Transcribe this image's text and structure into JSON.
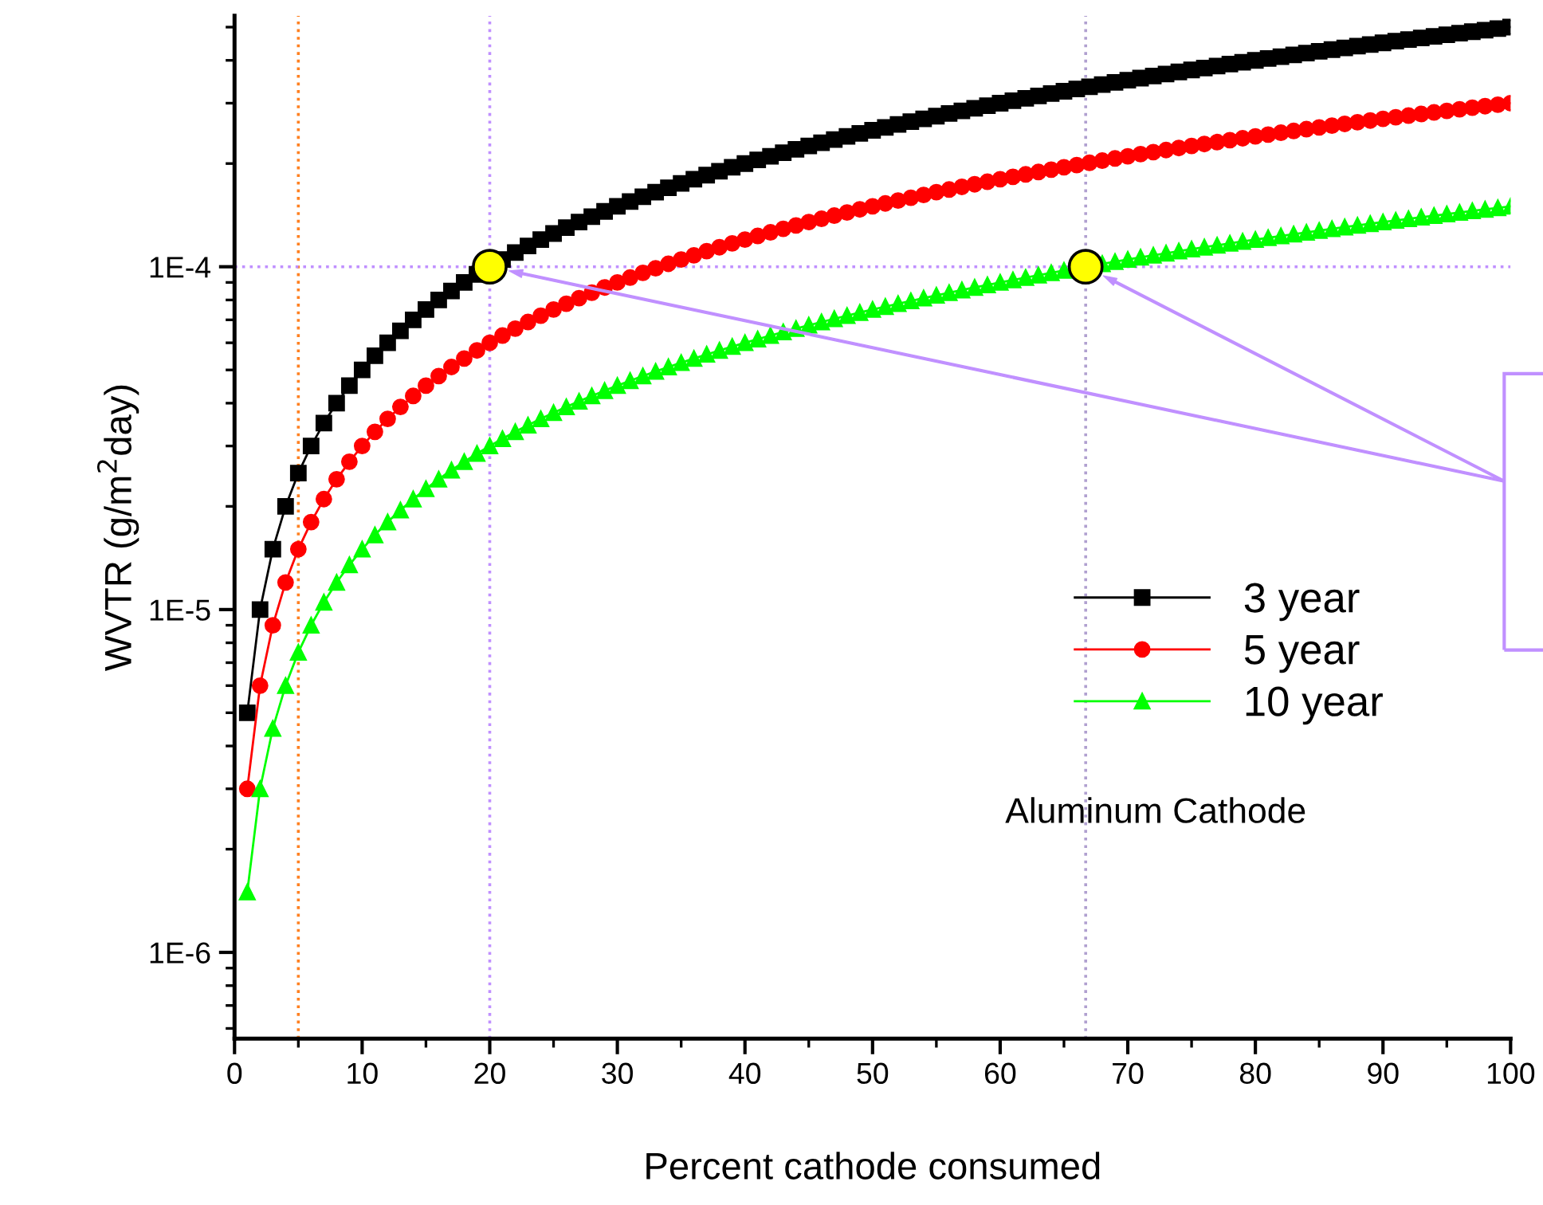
{
  "chart_data": {
    "type": "line",
    "xlabel": "Percent cathode consumed",
    "ylabel": "WVTR (g/m$^{2}$day)",
    "x": [
      1,
      2,
      3,
      4,
      5,
      6,
      7,
      8,
      9,
      10,
      11,
      12,
      13,
      14,
      15,
      16,
      17,
      18,
      19,
      20,
      21,
      22,
      23,
      24,
      25,
      26,
      27,
      28,
      29,
      30,
      31,
      32,
      33,
      34,
      35,
      36,
      37,
      38,
      39,
      40,
      41,
      42,
      43,
      44,
      45,
      46,
      47,
      48,
      49,
      50,
      51,
      52,
      53,
      54,
      55,
      56,
      57,
      58,
      59,
      60,
      61,
      62,
      63,
      64,
      65,
      66,
      67,
      68,
      69,
      70,
      71,
      72,
      73,
      74,
      75,
      76,
      77,
      78,
      79,
      80,
      81,
      82,
      83,
      84,
      85,
      86,
      87,
      88,
      89,
      90,
      91,
      92,
      93,
      94,
      95,
      96,
      97,
      98,
      99,
      100
    ],
    "series": [
      {
        "name": "3 year",
        "color": "#000000",
        "marker": "square",
        "values": [
          5e-06,
          1e-05,
          1.5e-05,
          2e-05,
          2.5e-05,
          3e-05,
          3.5e-05,
          4e-05,
          4.5e-05,
          5e-05,
          5.5e-05,
          6e-05,
          6.5e-05,
          7e-05,
          7.5e-05,
          8e-05,
          8.5e-05,
          9e-05,
          9.5e-05,
          null,
          0.000105,
          0.00011,
          0.000115,
          0.00012,
          0.000125,
          0.00013,
          0.000135,
          0.00014,
          0.000145,
          0.00015,
          0.000155,
          0.00016,
          0.000165,
          0.00017,
          0.000175,
          0.00018,
          0.000185,
          0.00019,
          0.000195,
          0.0002,
          0.000205,
          0.00021,
          0.000215,
          0.00022,
          0.000225,
          0.00023,
          0.000235,
          0.00024,
          0.000245,
          0.00025,
          0.000255,
          0.00026,
          0.000265,
          0.00027,
          0.000275,
          0.00028,
          0.000285,
          0.00029,
          0.000295,
          0.0003,
          0.000305,
          0.00031,
          0.000315,
          0.00032,
          0.000325,
          0.00033,
          0.000335,
          0.00034,
          0.000345,
          0.00035,
          0.000355,
          0.00036,
          0.000365,
          0.00037,
          0.000375,
          0.00038,
          0.000385,
          0.00039,
          0.000395,
          0.0004,
          0.000405,
          0.00041,
          0.000415,
          0.00042,
          0.000425,
          0.00043,
          0.000435,
          0.00044,
          0.000445,
          0.00045,
          0.000455,
          0.00046,
          0.000465,
          0.00047,
          0.000475,
          0.00048,
          0.000485,
          0.00049,
          0.000495,
          0.0005
        ]
      },
      {
        "name": "5 year",
        "color": "#ff0000",
        "marker": "circle",
        "values": [
          3e-06,
          6e-06,
          9e-06,
          1.2e-05,
          1.5e-05,
          1.8e-05,
          2.1e-05,
          2.4e-05,
          2.7e-05,
          3e-05,
          3.3e-05,
          3.6e-05,
          3.9e-05,
          4.2e-05,
          4.5e-05,
          4.8e-05,
          5.1e-05,
          5.4e-05,
          5.7e-05,
          6e-05,
          6.3e-05,
          6.6e-05,
          6.9e-05,
          7.2e-05,
          7.5e-05,
          7.8e-05,
          8.1e-05,
          8.4e-05,
          8.7e-05,
          9e-05,
          9.3e-05,
          9.6e-05,
          9.9e-05,
          0.000102,
          0.000105,
          0.000108,
          0.000111,
          0.000114,
          0.000117,
          0.00012,
          0.000123,
          0.000126,
          0.000129,
          0.000132,
          0.000135,
          0.000138,
          0.000141,
          0.000144,
          0.000147,
          0.00015,
          0.000153,
          0.000156,
          0.000159,
          0.000162,
          0.000165,
          0.000168,
          0.000171,
          0.000174,
          0.000177,
          0.00018,
          0.000183,
          0.000186,
          0.000189,
          0.000192,
          0.000195,
          0.000198,
          0.000201,
          0.000204,
          0.000207,
          0.00021,
          0.000213,
          0.000216,
          0.000219,
          0.000222,
          0.000225,
          0.000228,
          0.000231,
          0.000234,
          0.000237,
          0.00024,
          0.000243,
          0.000246,
          0.000249,
          0.000252,
          0.000255,
          0.000258,
          0.000261,
          0.000264,
          0.000267,
          0.00027,
          0.000273,
          0.000276,
          0.000279,
          0.000282,
          0.000285,
          0.000288,
          0.000291,
          0.000294,
          0.000297,
          0.0003
        ]
      },
      {
        "name": "10 year",
        "color": "#00ff00",
        "marker": "triangle",
        "values": [
          1.5e-06,
          3e-06,
          4.5e-06,
          6e-06,
          7.5e-06,
          9e-06,
          1.05e-05,
          1.2e-05,
          1.35e-05,
          1.5e-05,
          1.65e-05,
          1.8e-05,
          1.95e-05,
          2.1e-05,
          2.25e-05,
          2.4e-05,
          2.55e-05,
          2.7e-05,
          2.85e-05,
          3e-05,
          3.15e-05,
          3.3e-05,
          3.45e-05,
          3.6e-05,
          3.75e-05,
          3.9e-05,
          4.05e-05,
          4.2e-05,
          4.35e-05,
          4.5e-05,
          4.65e-05,
          4.8e-05,
          4.95e-05,
          5.1e-05,
          5.25e-05,
          5.4e-05,
          5.55e-05,
          5.7e-05,
          5.85e-05,
          6e-05,
          6.15e-05,
          6.3e-05,
          6.45e-05,
          6.6e-05,
          6.75e-05,
          6.9e-05,
          7.05e-05,
          7.2e-05,
          7.35e-05,
          7.5e-05,
          7.65e-05,
          7.8e-05,
          7.95e-05,
          8.1e-05,
          8.25e-05,
          8.4e-05,
          8.55e-05,
          8.7e-05,
          8.85e-05,
          9e-05,
          9.15e-05,
          9.3e-05,
          9.45e-05,
          9.6e-05,
          9.75e-05,
          null,
          null,
          0.000102,
          0.0001035,
          0.000105,
          0.0001065,
          0.000108,
          0.0001095,
          0.000111,
          0.0001125,
          0.000114,
          0.0001155,
          0.000117,
          0.0001185,
          0.00012,
          0.0001215,
          0.000123,
          0.0001245,
          0.000126,
          0.0001275,
          0.000129,
          0.0001305,
          0.000132,
          0.0001335,
          0.000135,
          0.0001365,
          0.000138,
          0.0001395,
          0.000141,
          0.0001425,
          0.000144,
          0.0001455,
          0.000147,
          0.0001485,
          0.00015
        ]
      },
      {
        "type": "scatter",
        "color": "#ffff00",
        "marker": "circle",
        "x": [
          20,
          66.7
        ],
        "values": [
          0.0001,
          0.0001
        ]
      }
    ],
    "log": "y",
    "xlim": [
      0,
      100
    ],
    "xticks": [
      0,
      10,
      20,
      30,
      40,
      50,
      60,
      70,
      80,
      90,
      100
    ],
    "ylim": [
      5.6e-07,
      0.00054
    ],
    "yticks": [
      {
        "value": 1e-06,
        "label": "1E-6"
      },
      {
        "value": 1e-05,
        "label": "1E-5"
      },
      {
        "value": 0.0001,
        "label": "1E-4"
      }
    ],
    "ref_lines": [
      {
        "axis": "x",
        "value": 5,
        "color": "#ff8020",
        "line_style": "dotted"
      },
      {
        "axis": "x",
        "value": 20,
        "color": "#c090ff",
        "line_style": "dotted"
      },
      {
        "axis": "x",
        "value": 66.7,
        "color": "#b0a0d0",
        "line_style": "dotted"
      },
      {
        "axis": "y",
        "value": 0.0001,
        "color": "#c090ff",
        "line_style": "dotted"
      }
    ],
    "legend": "lower right",
    "grid": false,
    "annotations": [
      "Aluminum Cathode"
    ]
  }
}
